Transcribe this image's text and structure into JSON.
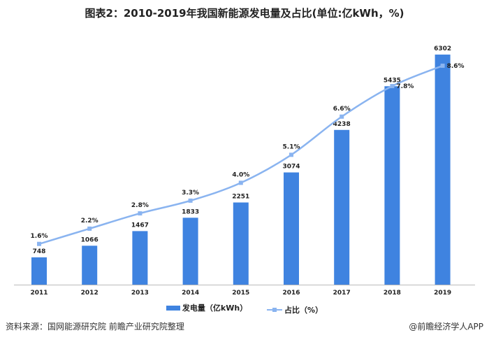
{
  "chart_data": {
    "type": "bar+line",
    "title": "图表2：2010-2019年我国新能源发电量及占比(单位:亿kWh，%)",
    "categories": [
      "2011",
      "2012",
      "2013",
      "2014",
      "2015",
      "2016",
      "2017",
      "2018",
      "2019"
    ],
    "series": [
      {
        "name": "发电量（亿kWh）",
        "type": "bar",
        "color": "#3f83e0",
        "values": [
          748,
          1066,
          1467,
          1833,
          2251,
          3074,
          4238,
          5435,
          6302
        ]
      },
      {
        "name": "占比（%）",
        "type": "line",
        "color": "#8ab4f0",
        "values": [
          1.6,
          2.2,
          2.8,
          3.3,
          4.0,
          5.1,
          6.6,
          7.8,
          8.6
        ],
        "labels": [
          "1.6%",
          "2.2%",
          "2.8%",
          "3.3%",
          "4.0%",
          "5.1%",
          "6.6%",
          "7.8%",
          "8.6%"
        ]
      }
    ],
    "legend": "bottom",
    "grid": false
  },
  "footer": {
    "source": "资料来源：国网能源研究院 前瞻产业研究院整理",
    "brand": "@前瞻经济学人APP"
  }
}
